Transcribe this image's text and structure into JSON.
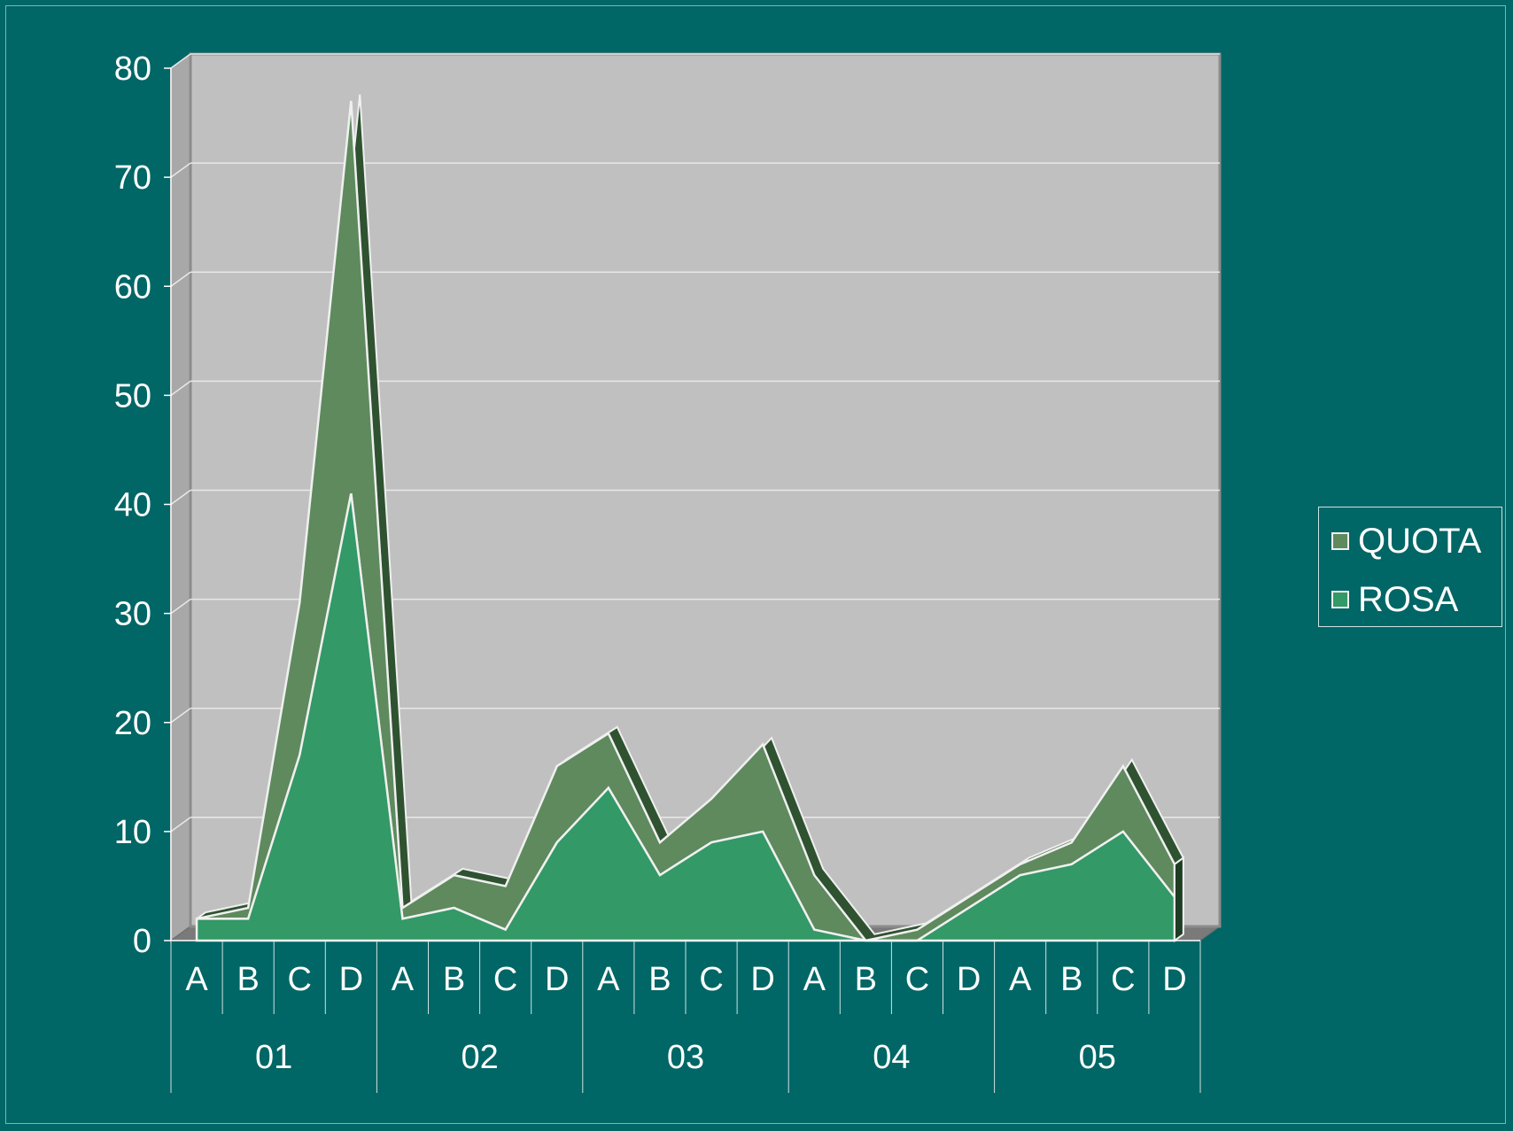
{
  "chart_data": {
    "type": "area",
    "stacked": true,
    "grid": true,
    "legend_position": "right",
    "ylim": [
      0,
      80
    ],
    "yticks": [
      0,
      10,
      20,
      30,
      40,
      50,
      60,
      70,
      80
    ],
    "categories": [
      "A",
      "B",
      "C",
      "D",
      "A",
      "B",
      "C",
      "D",
      "A",
      "B",
      "C",
      "D",
      "A",
      "B",
      "C",
      "D",
      "A",
      "B",
      "C",
      "D"
    ],
    "groups": [
      {
        "label": "01",
        "size": 4
      },
      {
        "label": "02",
        "size": 4
      },
      {
        "label": "03",
        "size": 4
      },
      {
        "label": "04",
        "size": 4
      },
      {
        "label": "05",
        "size": 4
      }
    ],
    "series": [
      {
        "name": "ROSA",
        "color": "#339966",
        "values": [
          2,
          2,
          17,
          41,
          2,
          3,
          1,
          9,
          14,
          6,
          9,
          10,
          1,
          0,
          0,
          3,
          6,
          7,
          10,
          4
        ]
      },
      {
        "name": "QUOTA",
        "color": "#5e8a5e",
        "values": [
          0,
          1,
          14,
          36,
          1,
          3,
          4,
          7,
          5,
          3,
          4,
          8,
          5,
          0,
          1,
          1,
          1,
          2,
          6,
          3
        ]
      }
    ],
    "legend_order": [
      "QUOTA",
      "ROSA"
    ]
  }
}
